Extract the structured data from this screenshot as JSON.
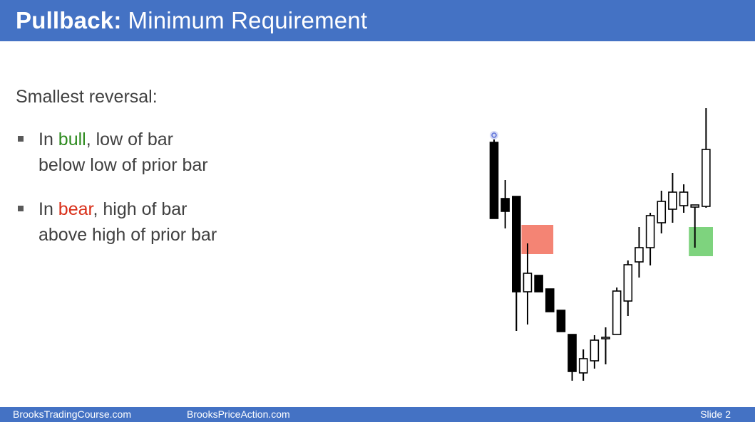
{
  "slide": {
    "title_bold": "Pullback:",
    "title_rest": "Minimum Requirement",
    "intro": "Smallest reversal:",
    "bullets": [
      {
        "prefix": "In ",
        "keyword": "bull",
        "suffix": ", low of bar",
        "line2": "below low of prior bar"
      },
      {
        "prefix": "In ",
        "keyword": "bear",
        "suffix": ", high of bar",
        "line2": "above high of prior bar"
      }
    ]
  },
  "footer": {
    "left": "BrooksTradingCourse.com",
    "center": "BrooksPriceAction.com",
    "right": "Slide  2"
  },
  "colors": {
    "accent": "#4472c4",
    "bull": "#2e8b1f",
    "bear": "#d9301a",
    "bear_zone": "#f48474",
    "bull_zone": "#7ed37e",
    "cursor": "#5a6fd8"
  },
  "chart_data": {
    "type": "candlestick",
    "ylim": [
      0,
      400
    ],
    "bars": [
      {
        "open": 340,
        "close": 233,
        "high": 344,
        "low": 233
      },
      {
        "open": 261,
        "close": 243,
        "high": 287,
        "low": 219
      },
      {
        "open": 264,
        "close": 130,
        "high": 264,
        "low": 75
      },
      {
        "open": 130,
        "close": 156,
        "high": 198,
        "low": 84
      },
      {
        "open": 153,
        "close": 130,
        "high": 153,
        "low": 130
      },
      {
        "open": 134,
        "close": 102,
        "high": 134,
        "low": 102
      },
      {
        "open": 104,
        "close": 74,
        "high": 104,
        "low": 74
      },
      {
        "open": 70,
        "close": 18,
        "high": 70,
        "low": 5
      },
      {
        "open": 16,
        "close": 36,
        "high": 49,
        "low": 5
      },
      {
        "open": 33,
        "close": 62,
        "high": 69,
        "low": 22
      },
      {
        "open": 64,
        "close": 66,
        "high": 80,
        "low": 28
      },
      {
        "open": 70,
        "close": 131,
        "high": 136,
        "low": 70
      },
      {
        "open": 117,
        "close": 168,
        "high": 174,
        "low": 96
      },
      {
        "open": 172,
        "close": 192,
        "high": 221,
        "low": 150
      },
      {
        "open": 192,
        "close": 237,
        "high": 241,
        "low": 167
      },
      {
        "open": 227,
        "close": 257,
        "high": 272,
        "low": 212
      },
      {
        "open": 246,
        "close": 270,
        "high": 297,
        "low": 227
      },
      {
        "open": 251,
        "close": 270,
        "high": 281,
        "low": 241
      },
      {
        "open": 249,
        "close": 252,
        "high": 252,
        "low": 192
      },
      {
        "open": 250,
        "close": 330,
        "high": 388,
        "low": 248
      }
    ],
    "zones": [
      {
        "name": "bear-pullback-zone",
        "bar_from": 3,
        "bar_to": 4,
        "top": 224,
        "bottom": 183
      },
      {
        "name": "bull-pullback-zone",
        "bar_from": 18,
        "bar_to": 19,
        "top": 221,
        "bottom": 180
      }
    ],
    "marker_bar": 0
  }
}
